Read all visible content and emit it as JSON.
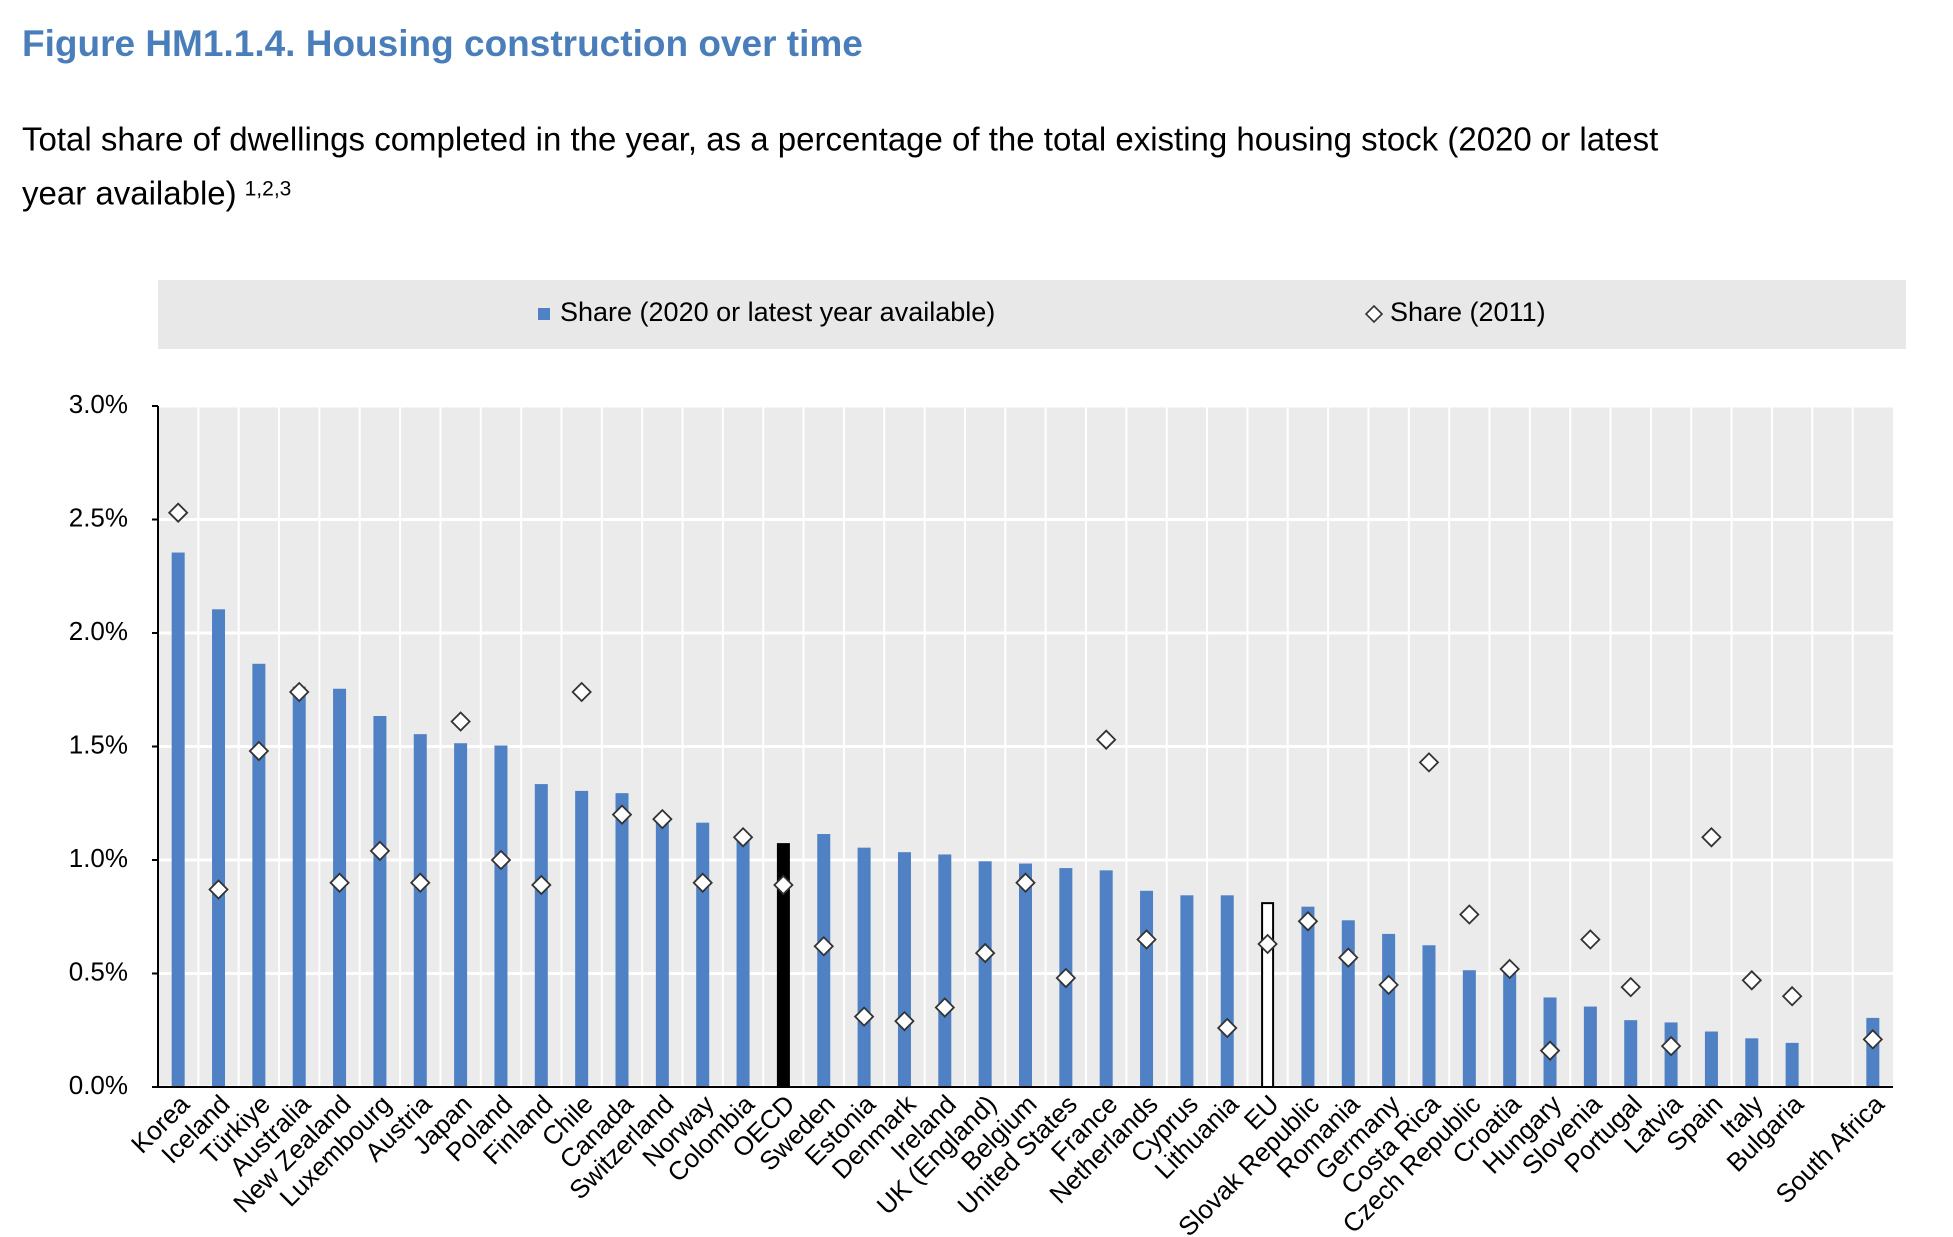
{
  "chart_data": {
    "type": "bar",
    "title": "Figure HM1.1.4. Housing construction over time",
    "subtitle_lines": [
      "Total share of dwellings completed in the year, as a percentage of the total existing housing stock (2020 or latest",
      "year available)"
    ],
    "subtitle_note": "1,2,3",
    "categories": [
      "Korea",
      "Iceland",
      "Türkiye",
      "Australia",
      "New Zealand",
      "Luxembourg",
      "Austria",
      "Japan",
      "Poland",
      "Finland",
      "Chile",
      "Canada",
      "Switzerland",
      "Norway",
      "Colombia",
      "OECD",
      "Sweden",
      "Estonia",
      "Denmark",
      "Ireland",
      "UK (England)",
      "Belgium",
      "United States",
      "France",
      "Netherlands",
      "Cyprus",
      "Lithuania",
      "EU",
      "Slovak Republic",
      "Romania",
      "Germany",
      "Costa Rica",
      "Czech Republic",
      "Croatia",
      "Hungary",
      "Slovenia",
      "Portugal",
      "Latvia",
      "Spain",
      "Italy",
      "Bulgaria",
      null,
      "South Africa"
    ],
    "series": [
      {
        "name": "Share (2020 or latest year available)",
        "type": "bar",
        "color": "#4f81c4",
        "values": [
          2.35,
          2.1,
          1.86,
          1.76,
          1.75,
          1.63,
          1.55,
          1.51,
          1.5,
          1.33,
          1.3,
          1.29,
          1.19,
          1.16,
          1.1,
          1.07,
          1.11,
          1.05,
          1.03,
          1.02,
          0.99,
          0.98,
          0.96,
          0.95,
          0.86,
          0.84,
          0.84,
          0.81,
          0.79,
          0.73,
          0.67,
          0.62,
          0.51,
          0.52,
          0.39,
          0.35,
          0.29,
          0.28,
          0.24,
          0.21,
          0.19,
          null,
          0.3
        ],
        "colors": [
          "#4f81c4",
          "#4f81c4",
          "#4f81c4",
          "#4f81c4",
          "#4f81c4",
          "#4f81c4",
          "#4f81c4",
          "#4f81c4",
          "#4f81c4",
          "#4f81c4",
          "#4f81c4",
          "#4f81c4",
          "#4f81c4",
          "#4f81c4",
          "#4f81c4",
          "#000000",
          "#4f81c4",
          "#4f81c4",
          "#4f81c4",
          "#4f81c4",
          "#4f81c4",
          "#4f81c4",
          "#4f81c4",
          "#4f81c4",
          "#4f81c4",
          "#4f81c4",
          "#4f81c4",
          "#ffffff",
          "#4f81c4",
          "#4f81c4",
          "#4f81c4",
          "#4f81c4",
          "#4f81c4",
          "#4f81c4",
          "#4f81c4",
          "#4f81c4",
          "#4f81c4",
          "#4f81c4",
          "#4f81c4",
          "#4f81c4",
          "#4f81c4",
          "#4f81c4",
          "#4f81c4"
        ],
        "edgecolors": [
          "#4f81c4",
          "#4f81c4",
          "#4f81c4",
          "#4f81c4",
          "#4f81c4",
          "#4f81c4",
          "#4f81c4",
          "#4f81c4",
          "#4f81c4",
          "#4f81c4",
          "#4f81c4",
          "#4f81c4",
          "#4f81c4",
          "#4f81c4",
          "#4f81c4",
          "#000000",
          "#4f81c4",
          "#4f81c4",
          "#4f81c4",
          "#4f81c4",
          "#4f81c4",
          "#4f81c4",
          "#4f81c4",
          "#4f81c4",
          "#4f81c4",
          "#4f81c4",
          "#4f81c4",
          "#000000",
          "#4f81c4",
          "#4f81c4",
          "#4f81c4",
          "#4f81c4",
          "#4f81c4",
          "#4f81c4",
          "#4f81c4",
          "#4f81c4",
          "#4f81c4",
          "#4f81c4",
          "#4f81c4",
          "#4f81c4",
          "#4f81c4",
          "#4f81c4",
          "#4f81c4"
        ]
      },
      {
        "name": "Share (2011)",
        "type": "diamond",
        "color": "#ffffff",
        "edgecolor": "#333333",
        "values": [
          2.53,
          0.87,
          1.48,
          1.74,
          0.9,
          1.04,
          0.9,
          1.61,
          1.0,
          0.89,
          1.74,
          1.2,
          1.18,
          0.9,
          1.1,
          0.89,
          0.62,
          0.31,
          0.29,
          0.35,
          0.59,
          0.9,
          0.48,
          1.53,
          0.65,
          null,
          0.26,
          0.63,
          0.73,
          0.57,
          0.45,
          1.43,
          0.76,
          0.52,
          0.16,
          0.65,
          0.44,
          0.18,
          1.1,
          0.47,
          0.4,
          null,
          0.21
        ]
      }
    ],
    "ylim": [
      0,
      3
    ],
    "yticks": [
      {
        "value": 0,
        "label": "0.0%"
      },
      {
        "value": 0.5,
        "label": "0.5%"
      },
      {
        "value": 1,
        "label": "1.0%"
      },
      {
        "value": 1.5,
        "label": "1.5%"
      },
      {
        "value": 2,
        "label": "2.0%"
      },
      {
        "value": 2.5,
        "label": "2.5%"
      },
      {
        "value": 3,
        "label": "3.0%"
      }
    ],
    "grid": true,
    "legend": "top"
  }
}
